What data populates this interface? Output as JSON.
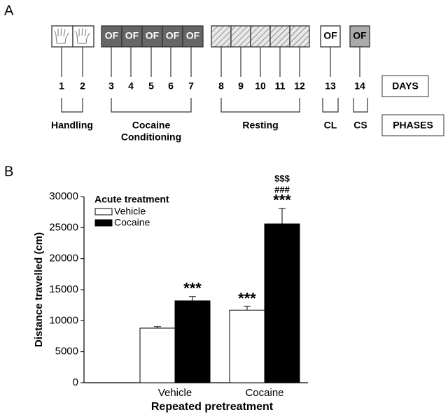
{
  "diagram": {
    "panel_label": "A",
    "days": [
      "1",
      "2",
      "3",
      "4",
      "5",
      "6",
      "7",
      "8",
      "9",
      "10",
      "11",
      "12",
      "13",
      "14"
    ],
    "day_boxes": [
      null,
      null,
      "OF",
      "OF",
      "OF",
      "OF",
      "OF",
      null,
      null,
      null,
      null,
      null,
      "OF",
      "OF"
    ],
    "days_label": "DAYS",
    "phases": [
      [
        "Handling"
      ],
      [
        "Cocaine",
        "Conditioning"
      ],
      [
        "Resting"
      ],
      [
        "CL"
      ],
      [
        "CS"
      ]
    ],
    "phases_label": "PHASES"
  },
  "chart_data": {
    "type": "bar",
    "panel_label": "B",
    "ylabel": "Distance travelled (cm)",
    "xlabel": "Repeated pretreatment",
    "legend_title": "Acute treatment",
    "categories": [
      "Vehicle",
      "Cocaine"
    ],
    "series": [
      {
        "name": "Vehicle",
        "color": "#ffffff",
        "values": [
          8800,
          11700
        ],
        "errors": [
          250,
          600
        ],
        "annotations": [
          null,
          [
            "***"
          ]
        ]
      },
      {
        "name": "Cocaine",
        "color": "#000000",
        "values": [
          13200,
          25600
        ],
        "errors": [
          700,
          2500
        ],
        "annotations": [
          [
            "***"
          ],
          [
            "$$$",
            "###",
            "***"
          ]
        ]
      }
    ],
    "ylim": [
      0,
      30000
    ],
    "yticks": [
      0,
      5000,
      10000,
      15000,
      20000,
      25000,
      30000
    ]
  }
}
